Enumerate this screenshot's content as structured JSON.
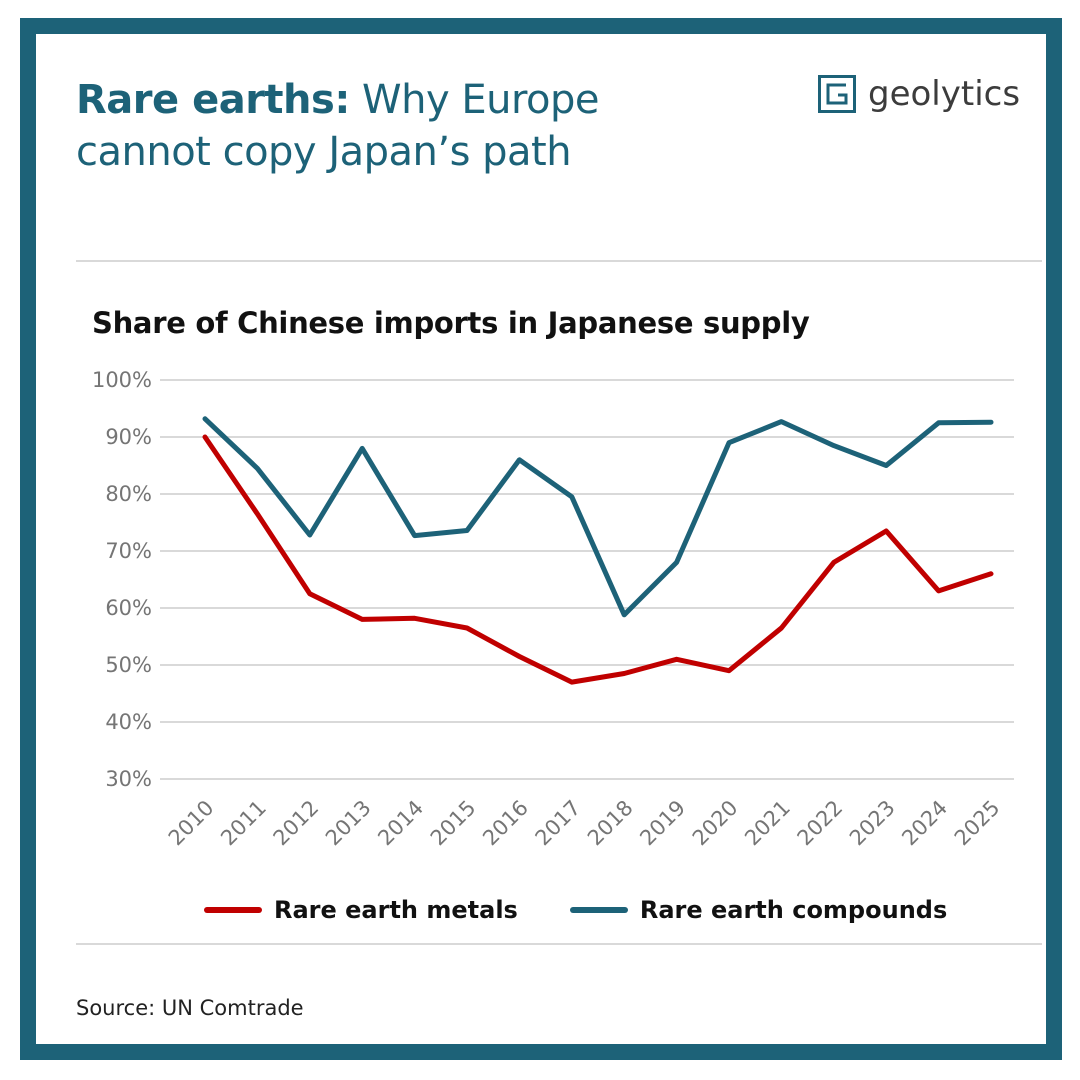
{
  "header": {
    "title_bold": "Rare earths:",
    "title_rest": " Why Europe cannot copy Japan’s path",
    "logo_text": "geolytics"
  },
  "chart_data": {
    "type": "line",
    "title": "Share of Chinese imports in Japanese supply",
    "xlabel": "",
    "ylabel": "",
    "x": [
      "2010",
      "2011",
      "2012",
      "2013",
      "2014",
      "2015",
      "2016",
      "2017",
      "2018",
      "2019",
      "2020",
      "2021",
      "2022",
      "2023",
      "2024",
      "2025"
    ],
    "yticks": [
      "30%",
      "40%",
      "50%",
      "60%",
      "70%",
      "80%",
      "90%",
      "100%"
    ],
    "ylim": [
      30,
      100
    ],
    "grid": true,
    "legend_position": "bottom",
    "series": [
      {
        "name": "Rare earth metals",
        "color": "#c00000",
        "values": [
          90,
          76.5,
          62.5,
          58,
          58.2,
          56.5,
          51.5,
          47,
          48.5,
          51,
          49,
          56.5,
          68,
          73.5,
          63,
          66
        ]
      },
      {
        "name": "Rare earth compounds",
        "color": "#1d6278",
        "values": [
          93.2,
          84.5,
          72.8,
          88,
          72.7,
          73.6,
          86,
          79.5,
          58.8,
          68,
          89,
          92.7,
          88.5,
          85,
          92.5,
          92.6
        ]
      }
    ]
  },
  "footer": {
    "source": "Source: UN Comtrade"
  },
  "colors": {
    "brand": "#1d6278",
    "metals": "#c00000",
    "grid": "#d9d9d9"
  },
  "icons": {
    "logo": "geolytics-logo-icon"
  }
}
